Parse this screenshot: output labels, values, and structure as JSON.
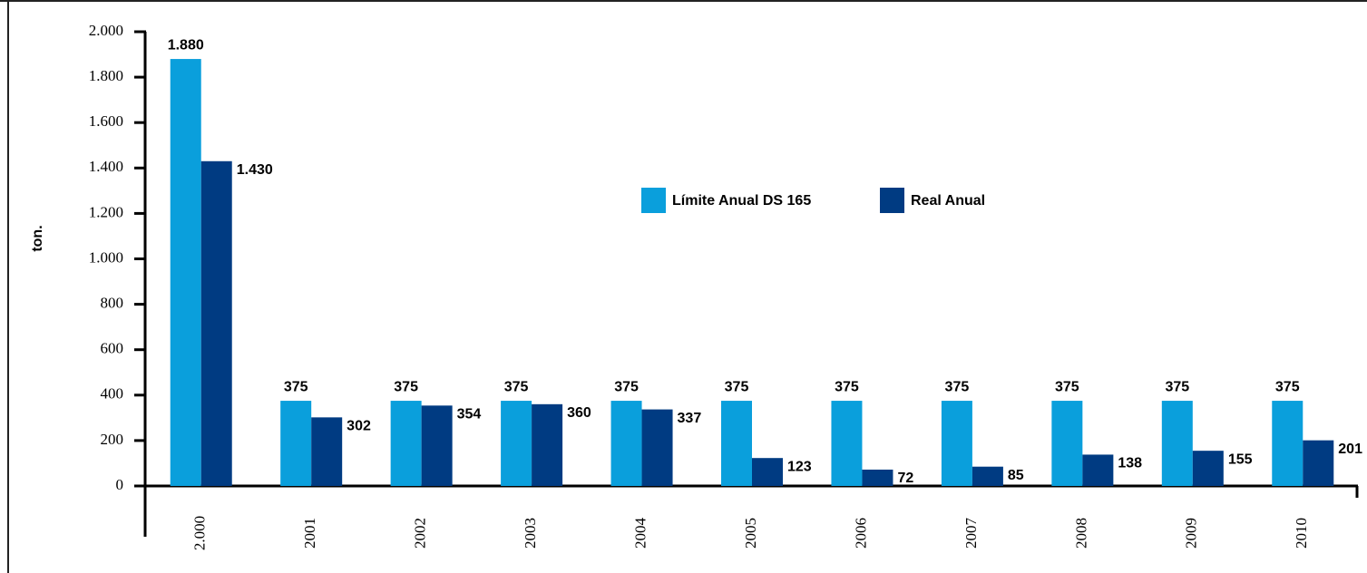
{
  "chart_data": {
    "type": "bar",
    "y_label": "ton.",
    "categories": [
      "2.000",
      "2001",
      "2002",
      "2003",
      "2004",
      "2005",
      "2006",
      "2007",
      "2008",
      "2009",
      "2010"
    ],
    "series": [
      {
        "name": "Límite Anual DS 165",
        "color": "#0a9fdc",
        "values": [
          1880,
          375,
          375,
          375,
          375,
          375,
          375,
          375,
          375,
          375,
          375
        ],
        "value_labels": [
          "1.880",
          "375",
          "375",
          "375",
          "375",
          "375",
          "375",
          "375",
          "375",
          "375",
          "375"
        ]
      },
      {
        "name": "Real Anual",
        "color": "#003b82",
        "values": [
          1430,
          302,
          354,
          360,
          337,
          123,
          72,
          85,
          138,
          155,
          201
        ],
        "value_labels": [
          "1.430",
          "302",
          "354",
          "360",
          "337",
          "123",
          "72",
          "85",
          "138",
          "155",
          "201"
        ]
      }
    ],
    "ylim": [
      0,
      2000
    ],
    "yticks": [
      0,
      200,
      400,
      600,
      800,
      {
        "value": 1000,
        "label": "1.000"
      },
      {
        "value": 1200,
        "label": "1.200"
      },
      {
        "value": 1400,
        "label": "1.400"
      },
      {
        "value": 1600,
        "label": "1.600"
      },
      {
        "value": 1800,
        "label": "1.800"
      },
      {
        "value": 2000,
        "label": "2.000"
      }
    ],
    "grid": false,
    "legend": "center"
  }
}
